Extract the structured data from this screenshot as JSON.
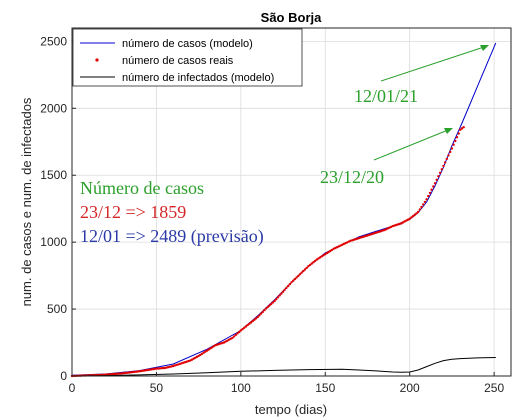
{
  "chart_data": {
    "type": "line",
    "title": "São Borja",
    "xlabel": "tempo (dias)",
    "ylabel": "num. de casos e num. de infectados",
    "xlim": [
      0,
      260
    ],
    "ylim": [
      0,
      2600
    ],
    "xticks": [
      0,
      50,
      100,
      150,
      200,
      250
    ],
    "yticks": [
      0,
      500,
      1000,
      1500,
      2000,
      2500
    ],
    "grid": true,
    "legend_position": "top-left",
    "series": [
      {
        "name": "número de casos (modelo)",
        "style": "line",
        "color": "#0000cc",
        "x": [
          0,
          20,
          40,
          60,
          80,
          100,
          110,
          120,
          130,
          140,
          150,
          160,
          170,
          180,
          190,
          200,
          205,
          210,
          215,
          220,
          225,
          230,
          235,
          240,
          245,
          251
        ],
        "y": [
          5,
          15,
          40,
          90,
          200,
          340,
          450,
          570,
          700,
          820,
          920,
          980,
          1040,
          1080,
          1120,
          1170,
          1220,
          1300,
          1420,
          1560,
          1720,
          1860,
          2010,
          2160,
          2310,
          2489
        ]
      },
      {
        "name": "número de casos reais",
        "style": "markers",
        "color": "#e00000",
        "x": [
          0,
          10,
          20,
          30,
          40,
          50,
          55,
          60,
          65,
          70,
          75,
          80,
          85,
          90,
          95,
          100,
          105,
          110,
          115,
          120,
          125,
          130,
          135,
          140,
          145,
          150,
          155,
          160,
          165,
          170,
          175,
          180,
          185,
          190,
          195,
          200,
          205,
          210,
          215,
          220,
          225,
          230,
          232
        ],
        "y": [
          0,
          5,
          10,
          20,
          35,
          55,
          60,
          75,
          95,
          115,
          150,
          190,
          230,
          250,
          285,
          340,
          390,
          440,
          505,
          560,
          630,
          700,
          760,
          820,
          870,
          910,
          950,
          980,
          1010,
          1030,
          1050,
          1070,
          1090,
          1120,
          1140,
          1175,
          1225,
          1320,
          1440,
          1570,
          1700,
          1840,
          1859
        ]
      },
      {
        "name": "número de infectados (modelo)",
        "style": "line",
        "color": "#000000",
        "x": [
          0,
          20,
          40,
          60,
          80,
          100,
          120,
          140,
          160,
          170,
          180,
          190,
          195,
          200,
          205,
          210,
          215,
          220,
          225,
          230,
          240,
          251
        ],
        "y": [
          0,
          3,
          8,
          15,
          25,
          35,
          42,
          48,
          50,
          45,
          38,
          30,
          28,
          30,
          45,
          70,
          95,
          115,
          125,
          130,
          135,
          138
        ]
      }
    ],
    "annotations": {
      "arrow1_label": "12/01/21",
      "arrow2_label": "23/12/20",
      "box_line1": "Número de casos",
      "box_line2": "23/12 => 1859",
      "box_line3": "12/01 => 2489 (previsão)"
    },
    "colors": {
      "annotation_green": "#2ca02c",
      "annotation_red": "#d62728",
      "annotation_blue": "#2b3aa6"
    }
  }
}
